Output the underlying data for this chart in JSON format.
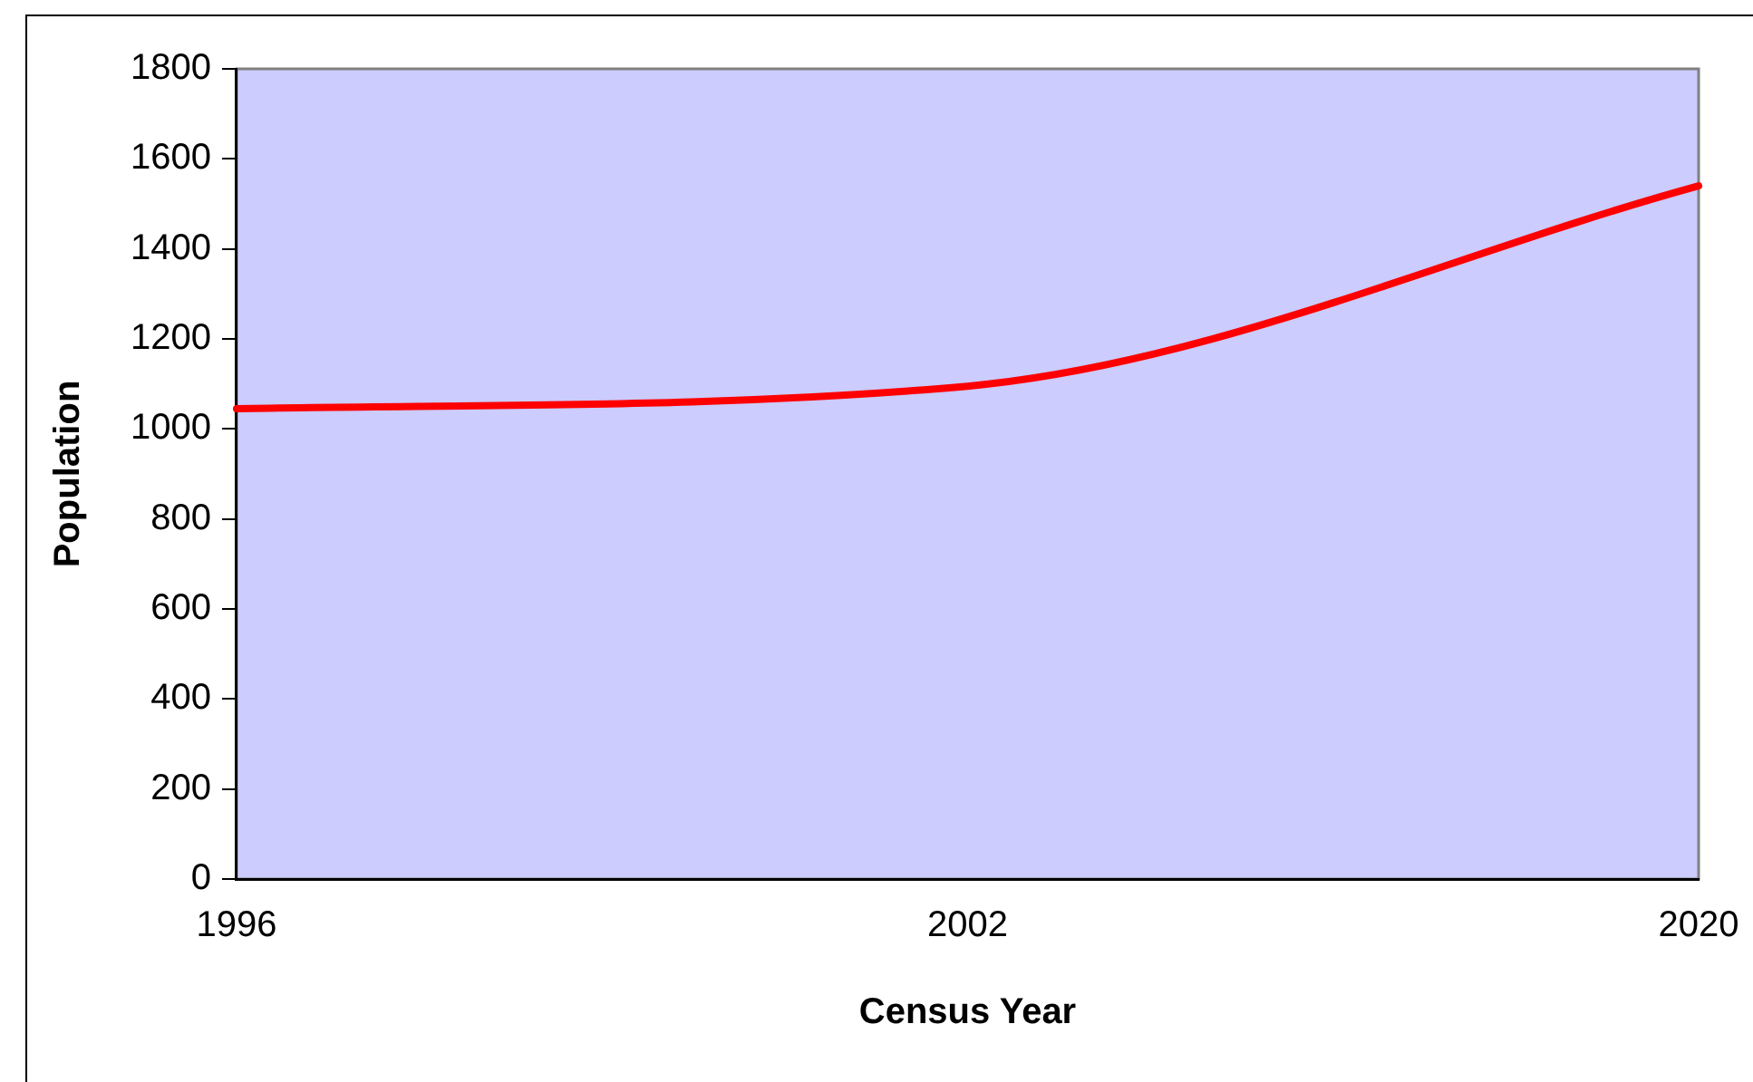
{
  "chart_data": {
    "type": "line",
    "xlabel": "Census Year",
    "ylabel": "Population",
    "categories": [
      "1996",
      "2002",
      "2020"
    ],
    "series": [
      {
        "color": "#ff0000",
        "values": [
          1045,
          1095,
          1540
        ]
      }
    ],
    "ylim": [
      0,
      1800
    ],
    "yticks": [
      0,
      200,
      400,
      600,
      800,
      1000,
      1200,
      1400,
      1600,
      1800
    ],
    "grid": false,
    "legend": false,
    "marker": "none",
    "line_style": "solid"
  }
}
